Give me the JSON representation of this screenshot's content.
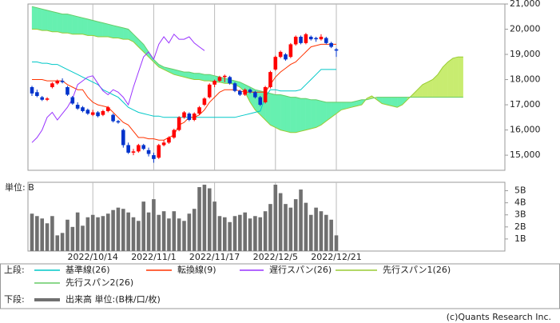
{
  "footer": "(c)Quants Research Inc.",
  "chart_data": [
    {
      "type": "candlestick",
      "legend_title": "上段:",
      "up_color": "#ff0000",
      "down_color": "#0033cc",
      "cloud_colors": [
        "#66f0b0",
        "#c8ec70"
      ],
      "grid_x": true,
      "ylim": [
        14400,
        21000
      ],
      "yticks": [
        {
          "value": 15000,
          "label": "15,000"
        },
        {
          "value": 16000,
          "label": "16,000"
        },
        {
          "value": 17000,
          "label": "17,000"
        },
        {
          "value": 18000,
          "label": "18,000"
        },
        {
          "value": 19000,
          "label": "19,000"
        },
        {
          "value": 20000,
          "label": "20,000"
        },
        {
          "value": 21000,
          "label": "21,000"
        }
      ],
      "open": [
        17700,
        17500,
        17300,
        17200,
        17700,
        17850,
        17950,
        17700,
        17300,
        17000,
        16900,
        16800,
        16600,
        16700,
        16600,
        16750,
        16600,
        16350,
        16000,
        15400,
        15100,
        15150,
        15400,
        15200,
        15000,
        14900,
        15400,
        15500,
        15700,
        16000,
        16500,
        16650,
        16400,
        16650,
        17000,
        17300,
        17800,
        17950,
        18100,
        18100,
        17850,
        17550,
        17400,
        17600,
        17500,
        17300,
        17100,
        17700,
        18400,
        18900,
        19000,
        18900,
        19400,
        19700,
        19450,
        19700,
        19650,
        19600,
        19650,
        19450,
        19200
      ],
      "high": [
        17750,
        17600,
        17350,
        17300,
        17900,
        18000,
        18050,
        17750,
        17350,
        17100,
        16950,
        16850,
        16800,
        16750,
        16800,
        16950,
        16650,
        16400,
        16050,
        15500,
        15250,
        15450,
        15450,
        15300,
        15100,
        15450,
        15600,
        15750,
        16050,
        16550,
        16750,
        16700,
        16700,
        16950,
        17300,
        17850,
        18000,
        18150,
        18200,
        18150,
        17900,
        17600,
        17650,
        17650,
        17550,
        17350,
        17750,
        18350,
        18950,
        19150,
        19050,
        19450,
        19750,
        19750,
        19850,
        19750,
        19700,
        19800,
        19700,
        19500,
        19250
      ],
      "low": [
        17350,
        17300,
        17150,
        17150,
        17650,
        17800,
        17850,
        17350,
        17000,
        16800,
        16700,
        16600,
        16550,
        16500,
        16550,
        16700,
        16300,
        16250,
        15300,
        15050,
        15000,
        15100,
        15200,
        14950,
        14700,
        14850,
        15350,
        15450,
        15650,
        15950,
        16450,
        16350,
        16350,
        16600,
        16950,
        17250,
        17700,
        17900,
        17900,
        17800,
        17500,
        17350,
        17350,
        17450,
        17250,
        16950,
        17050,
        17650,
        18350,
        18850,
        18750,
        18850,
        19350,
        19400,
        19400,
        19550,
        19500,
        19550,
        19400,
        19250,
        18900
      ],
      "close": [
        17450,
        17350,
        17200,
        17250,
        17850,
        17950,
        17900,
        17400,
        17050,
        16850,
        16750,
        16650,
        16700,
        16550,
        16750,
        16900,
        16350,
        16300,
        15400,
        15100,
        15150,
        15400,
        15250,
        15050,
        14850,
        15400,
        15500,
        15700,
        16000,
        16500,
        16700,
        16400,
        16650,
        16900,
        17250,
        17800,
        17950,
        18100,
        18150,
        17850,
        17550,
        17400,
        17600,
        17500,
        17300,
        17000,
        17700,
        18300,
        18900,
        19100,
        18800,
        19400,
        19700,
        19450,
        19800,
        19600,
        19600,
        19700,
        19450,
        19300,
        19150
      ],
      "series": [
        {
          "name": "基準線(26)",
          "color": "#00c8c8",
          "values": [
            18700,
            18700,
            18650,
            18650,
            18600,
            18600,
            18500,
            18400,
            18300,
            18200,
            18100,
            18000,
            17900,
            17800,
            17600,
            17500,
            17400,
            17300,
            17100,
            16900,
            16800,
            16700,
            16650,
            16600,
            16550,
            16550,
            16500,
            16500,
            16500,
            16500,
            16500,
            16500,
            16500,
            16500,
            16500,
            16500,
            16500,
            16500,
            16500,
            16500,
            16500,
            16550,
            16600,
            16650,
            16700,
            16750,
            17300,
            17600,
            17600,
            17550,
            17550,
            17550,
            17550,
            17600,
            17800,
            18000,
            18200,
            18400,
            18400,
            18400,
            18400
          ]
        },
        {
          "name": "転換線(9)",
          "color": "#ff3300",
          "values": [
            18000,
            18000,
            18000,
            17950,
            17950,
            17950,
            17950,
            17800,
            17700,
            17600,
            17600,
            17300,
            17100,
            17000,
            16950,
            16900,
            16700,
            16500,
            16300,
            16200,
            15950,
            15700,
            15700,
            15650,
            15650,
            15600,
            15600,
            15700,
            15800,
            16200,
            16300,
            16500,
            16500,
            16600,
            16800,
            17100,
            17300,
            17500,
            17600,
            17600,
            17600,
            17550,
            17500,
            17500,
            17500,
            17500,
            17500,
            17800,
            18100,
            18300,
            18450,
            18600,
            18700,
            18900,
            19100,
            19300,
            19350,
            19400,
            19400,
            19400,
            19400
          ]
        },
        {
          "name": "遅行スパン(26)",
          "color": "#9933ff",
          "values": [
            15500,
            15700,
            16000,
            16500,
            16700,
            16400,
            16650,
            16900,
            17250,
            17800,
            17950,
            18100,
            18150,
            17850,
            17550,
            17400,
            17600,
            17500,
            17300,
            17000,
            17700,
            18300,
            18900,
            19100,
            18800,
            19400,
            19700,
            19450,
            19800,
            19600,
            19600,
            19700,
            19450,
            19300,
            19150,
            null,
            null,
            null,
            null,
            null,
            null,
            null,
            null,
            null,
            null,
            null,
            null,
            null,
            null,
            null,
            null,
            null,
            null,
            null,
            null,
            null,
            null,
            null,
            null,
            null,
            null
          ]
        },
        {
          "name": "先行スパン1(26)",
          "color": "#99cc33",
          "values": [
            20000,
            20000,
            19950,
            19950,
            19900,
            19900,
            19850,
            19850,
            19800,
            19800,
            19800,
            19750,
            19750,
            19700,
            19700,
            19700,
            19650,
            19650,
            19600,
            19600,
            19500,
            19300,
            19100,
            18900,
            18700,
            18500,
            18400,
            18300,
            18200,
            18150,
            18100,
            18050,
            18000,
            18000,
            17950,
            17950,
            17900,
            17900,
            17850,
            17850,
            17800,
            17700,
            17500,
            17100,
            16800,
            16600,
            16400,
            16200,
            16100,
            16000,
            15950,
            15900,
            15900,
            15950,
            16000,
            16050,
            16100,
            16200,
            16350,
            16500,
            16650,
            16800,
            16850,
            16900,
            16950,
            17000,
            17250,
            17350,
            17200,
            17050,
            17000,
            16950,
            16900,
            17000,
            17200,
            17400,
            17600,
            17800,
            17900,
            18000,
            18200,
            18500,
            18700,
            18850,
            18900,
            18900
          ]
        },
        {
          "name": "先行スパン2(26)",
          "color": "#66cc66",
          "values": [
            20900,
            20850,
            20800,
            20750,
            20700,
            20650,
            20600,
            20600,
            20550,
            20500,
            20450,
            20400,
            20350,
            20300,
            20250,
            20200,
            20150,
            20100,
            20050,
            20000,
            19800,
            19600,
            19400,
            19100,
            18800,
            18600,
            18500,
            18450,
            18400,
            18350,
            18300,
            18300,
            18250,
            18250,
            18200,
            18200,
            18150,
            18100,
            18050,
            18000,
            17950,
            17900,
            17800,
            17700,
            17600,
            17550,
            17500,
            17450,
            17400,
            17400,
            17350,
            17300,
            17300,
            17250,
            17250,
            17200,
            17200,
            17150,
            17100,
            17100,
            17100,
            17100,
            17100,
            17100,
            17150,
            17200,
            17200,
            17250,
            17300,
            17300,
            17300,
            17300,
            17300,
            17300,
            17300,
            17300,
            17300,
            17300,
            17300,
            17300,
            17300,
            17300,
            17300,
            17300,
            17300,
            17300
          ]
        }
      ]
    },
    {
      "type": "bar",
      "legend_title": "下段:",
      "ylabel": "単位: B",
      "grid_x": true,
      "categories": [
        null,
        null,
        null,
        null,
        null,
        null,
        null,
        null,
        null,
        null,
        null,
        null,
        "2022/10/14",
        null,
        null,
        null,
        null,
        null,
        null,
        null,
        null,
        null,
        null,
        null,
        "2022/11/1",
        null,
        null,
        null,
        null,
        null,
        null,
        null,
        null,
        null,
        null,
        null,
        "2022/11/17",
        null,
        null,
        null,
        null,
        null,
        null,
        null,
        null,
        null,
        null,
        null,
        "2022/12/5",
        null,
        null,
        null,
        null,
        null,
        null,
        null,
        null,
        null,
        null,
        null,
        "2022/12/21"
      ],
      "ylim": [
        0,
        5.7
      ],
      "yticks": [
        {
          "value": 1,
          "label": "1B"
        },
        {
          "value": 2,
          "label": "2B"
        },
        {
          "value": 3,
          "label": "3B"
        },
        {
          "value": 4,
          "label": "4B"
        },
        {
          "value": 5,
          "label": "5B"
        }
      ],
      "series": [
        {
          "name": "出来高 単位:(B株/口/枚)",
          "color": "#707070",
          "values": [
            3.1,
            2.9,
            2.7,
            2.3,
            2.9,
            1.3,
            1.5,
            2.6,
            2.0,
            3.2,
            2.1,
            2.8,
            3.0,
            2.8,
            2.9,
            3.1,
            3.4,
            3.6,
            3.5,
            3.2,
            2.8,
            2.5,
            4.1,
            3.2,
            4.3,
            3.0,
            3.3,
            2.7,
            3.3,
            2.7,
            2.5,
            3.1,
            3.5,
            5.3,
            5.5,
            5.2,
            4.1,
            2.9,
            2.8,
            2.4,
            2.9,
            3.0,
            3.2,
            2.7,
            2.9,
            2.8,
            3.3,
            3.9,
            5.5,
            4.8,
            3.9,
            3.6,
            4.3,
            5.1,
            4.0,
            3.0,
            3.6,
            3.3,
            3.0,
            2.6,
            1.3
          ]
        }
      ]
    }
  ]
}
